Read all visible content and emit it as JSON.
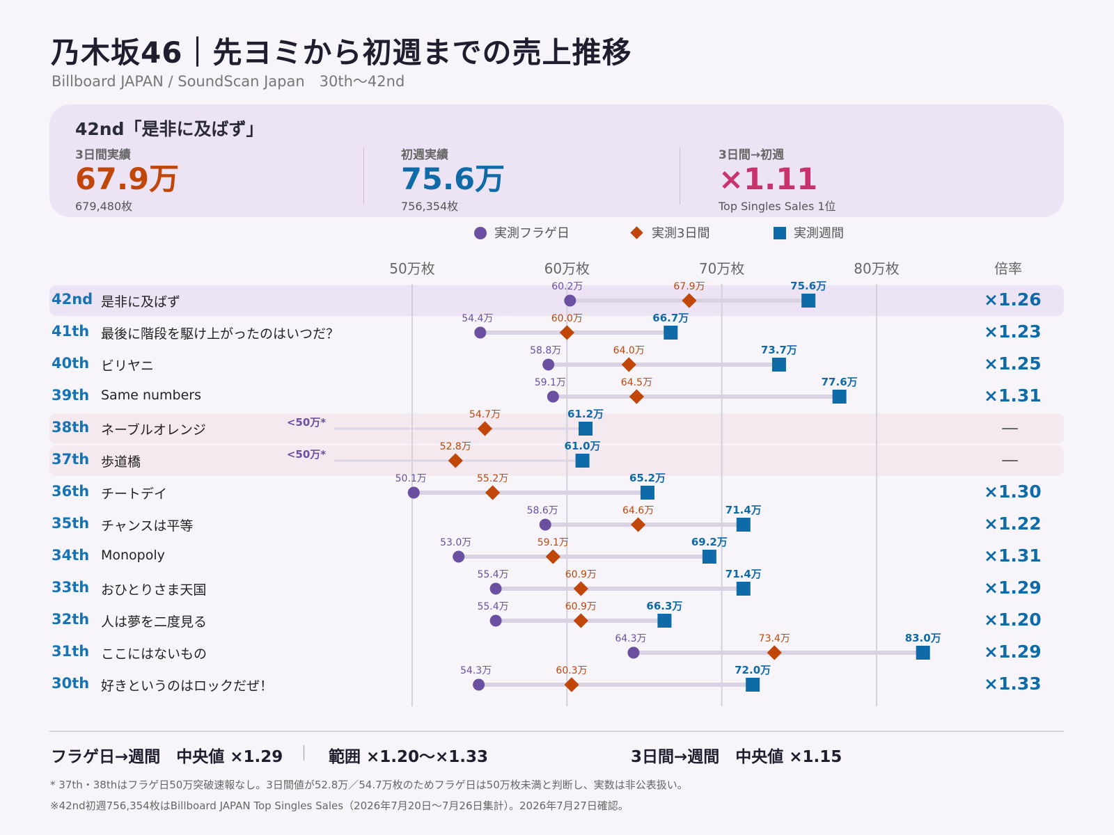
{
  "header": {
    "title": "乃木坂46｜先ヨミから初週までの売上推移",
    "subtitle": "Billboard JAPAN / SoundScan Japan　30th〜42nd"
  },
  "summary": {
    "song": "42nd「是非に及ばず」",
    "three_day": {
      "label": "3日間実績",
      "value": "67.9万",
      "detail": "679,480枚"
    },
    "first_week": {
      "label": "初週実績",
      "value": "75.6万",
      "detail": "756,354枚"
    },
    "ratio": {
      "label": "3日間→初週",
      "value": "×1.11",
      "detail": "Top Singles Sales 1位"
    }
  },
  "legend": {
    "flag": "実測フラゲ日",
    "three_day": "実測3日間",
    "week": "実測週間"
  },
  "colors": {
    "flag": "#6b4fa0",
    "three_day": "#c0460a",
    "week": "#0f6aa8",
    "ratio": "#c8336e",
    "highlight": "#ece3f4",
    "missing": "#f4e9ee"
  },
  "axis": {
    "multiplier_header": "倍率"
  },
  "chart_data": {
    "type": "dumbbell",
    "title": "乃木坂46｜先ヨミから初週までの売上推移",
    "subtitle": "Billboard JAPAN / SoundScan Japan　30th〜42nd",
    "xlim": [
      50,
      80
    ],
    "unit": "万枚",
    "ticks": [
      {
        "value": 50,
        "label": "50万枚"
      },
      {
        "value": 60,
        "label": "60万枚"
      },
      {
        "value": 70,
        "label": "70万枚"
      },
      {
        "value": 80,
        "label": "80万枚"
      }
    ],
    "series": [
      {
        "key": "flag",
        "name": "実測フラゲ日"
      },
      {
        "key": "three_day",
        "name": "実測3日間"
      },
      {
        "key": "week",
        "name": "実測週間"
      }
    ],
    "rows": [
      {
        "rank": "42nd",
        "title": "是非に及ばず",
        "flag": 60.2,
        "flag_label": "60.2万",
        "three_day": 67.9,
        "three_day_label": "67.9万",
        "week": 75.6,
        "week_label": "75.6万",
        "mult": "×1.26",
        "highlight": true
      },
      {
        "rank": "41th",
        "title": "最後に階段を駆け上がったのはいつだ？",
        "flag": 54.4,
        "flag_label": "54.4万",
        "three_day": 60.0,
        "three_day_label": "60.0万",
        "week": 66.7,
        "week_label": "66.7万",
        "mult": "×1.23"
      },
      {
        "rank": "40th",
        "title": "ビリヤニ",
        "flag": 58.8,
        "flag_label": "58.8万",
        "three_day": 64.0,
        "three_day_label": "64.0万",
        "week": 73.7,
        "week_label": "73.7万",
        "mult": "×1.25"
      },
      {
        "rank": "39th",
        "title": "Same numbers",
        "flag": 59.1,
        "flag_label": "59.1万",
        "three_day": 64.5,
        "three_day_label": "64.5万",
        "week": 77.6,
        "week_label": "77.6万",
        "mult": "×1.31"
      },
      {
        "rank": "38th",
        "title": "ネーブルオレンジ",
        "flag": null,
        "flag_label": "<50万*",
        "three_day": 54.7,
        "three_day_label": "54.7万",
        "week": 61.2,
        "week_label": "61.2万",
        "mult": "—",
        "missing": true
      },
      {
        "rank": "37th",
        "title": "歩道橋",
        "flag": null,
        "flag_label": "<50万*",
        "three_day": 52.8,
        "three_day_label": "52.8万",
        "week": 61.0,
        "week_label": "61.0万",
        "mult": "—",
        "missing": true
      },
      {
        "rank": "36th",
        "title": "チートデイ",
        "flag": 50.1,
        "flag_label": "50.1万",
        "three_day": 55.2,
        "three_day_label": "55.2万",
        "week": 65.2,
        "week_label": "65.2万",
        "mult": "×1.30"
      },
      {
        "rank": "35th",
        "title": "チャンスは平等",
        "flag": 58.6,
        "flag_label": "58.6万",
        "three_day": 64.6,
        "three_day_label": "64.6万",
        "week": 71.4,
        "week_label": "71.4万",
        "mult": "×1.22"
      },
      {
        "rank": "34th",
        "title": "Monopoly",
        "flag": 53.0,
        "flag_label": "53.0万",
        "three_day": 59.1,
        "three_day_label": "59.1万",
        "week": 69.2,
        "week_label": "69.2万",
        "mult": "×1.31"
      },
      {
        "rank": "33th",
        "title": "おひとりさま天国",
        "flag": 55.4,
        "flag_label": "55.4万",
        "three_day": 60.9,
        "three_day_label": "60.9万",
        "week": 71.4,
        "week_label": "71.4万",
        "mult": "×1.29"
      },
      {
        "rank": "32th",
        "title": "人は夢を二度見る",
        "flag": 55.4,
        "flag_label": "55.4万",
        "three_day": 60.9,
        "three_day_label": "60.9万",
        "week": 66.3,
        "week_label": "66.3万",
        "mult": "×1.20"
      },
      {
        "rank": "31th",
        "title": "ここにはないもの",
        "flag": 64.3,
        "flag_label": "64.3万",
        "three_day": 73.4,
        "three_day_label": "73.4万",
        "week": 83.0,
        "week_label": "83.0万",
        "mult": "×1.29"
      },
      {
        "rank": "30th",
        "title": "好きというのはロックだぜ！",
        "flag": 54.3,
        "flag_label": "54.3万",
        "three_day": 60.3,
        "three_day_label": "60.3万",
        "week": 72.0,
        "week_label": "72.0万",
        "mult": "×1.33"
      }
    ]
  },
  "footer": {
    "flag_median": "フラゲ日→週間　中央値 ×1.29",
    "range": "範囲 ×1.20〜×1.33",
    "three_day_median": "3日間→週間　中央値 ×1.15",
    "note1": "* 37th・38thはフラゲ日50万突破速報なし。3日間値が52.8万／54.7万枚のためフラゲ日は50万枚未満と判断し、実数は非公表扱い。",
    "note2": "※42nd初週756,354枚はBillboard JAPAN Top Singles Sales（2026年7月20日〜7月26日集計）。2026年7月27日確認。"
  }
}
